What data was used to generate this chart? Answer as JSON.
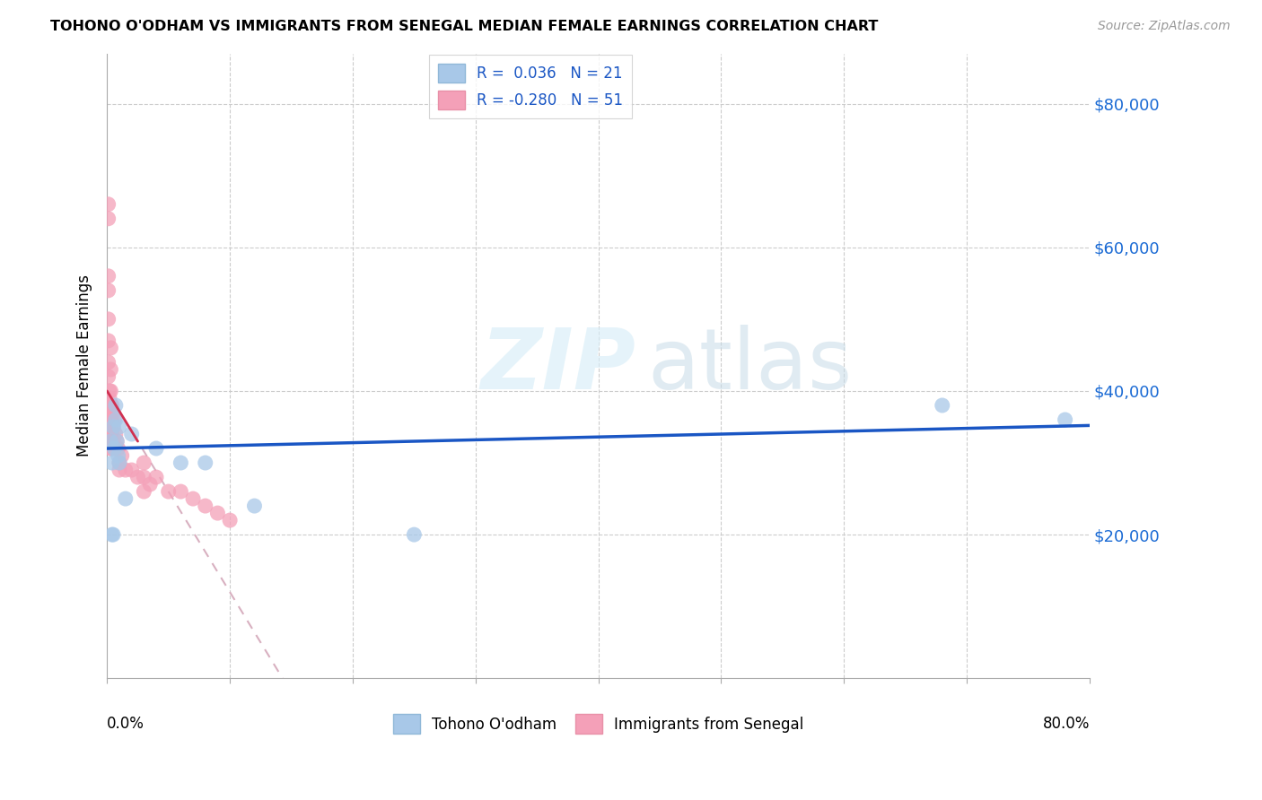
{
  "title": "TOHONO O'ODHAM VS IMMIGRANTS FROM SENEGAL MEDIAN FEMALE EARNINGS CORRELATION CHART",
  "source": "Source: ZipAtlas.com",
  "ylabel": "Median Female Earnings",
  "ytick_labels": [
    "$20,000",
    "$40,000",
    "$60,000",
    "$80,000"
  ],
  "ytick_values": [
    20000,
    40000,
    60000,
    80000
  ],
  "ymin": 0,
  "ymax": 87000,
  "xmin": 0.0,
  "xmax": 0.8,
  "color_blue": "#a8c8e8",
  "color_pink": "#f4a0b8",
  "trendline_blue_color": "#1a56c4",
  "trendline_pink_color": "#d03050",
  "trendline_pink_dash_color": "#d8b0c0",
  "tohono_x": [
    0.003,
    0.004,
    0.004,
    0.005,
    0.005,
    0.006,
    0.007,
    0.007,
    0.008,
    0.009,
    0.01,
    0.01,
    0.015,
    0.02,
    0.04,
    0.06,
    0.08,
    0.12,
    0.25,
    0.68,
    0.78
  ],
  "tohono_y": [
    33000,
    30000,
    20000,
    35000,
    20000,
    32000,
    38000,
    36000,
    33000,
    31000,
    35000,
    30000,
    25000,
    34000,
    32000,
    30000,
    30000,
    24000,
    20000,
    38000,
    36000
  ],
  "senegal_x": [
    0.001,
    0.001,
    0.001,
    0.001,
    0.001,
    0.001,
    0.001,
    0.001,
    0.002,
    0.002,
    0.002,
    0.002,
    0.002,
    0.002,
    0.002,
    0.002,
    0.003,
    0.003,
    0.003,
    0.003,
    0.003,
    0.003,
    0.003,
    0.004,
    0.004,
    0.004,
    0.004,
    0.005,
    0.005,
    0.005,
    0.006,
    0.007,
    0.008,
    0.009,
    0.01,
    0.01,
    0.012,
    0.015,
    0.02,
    0.025,
    0.03,
    0.03,
    0.03,
    0.035,
    0.04,
    0.05,
    0.06,
    0.07,
    0.08,
    0.09,
    0.1
  ],
  "senegal_y": [
    66000,
    64000,
    56000,
    54000,
    50000,
    47000,
    44000,
    42000,
    40000,
    39000,
    38000,
    37000,
    36000,
    35000,
    34000,
    33000,
    46000,
    43000,
    40000,
    38000,
    36000,
    34000,
    32000,
    38000,
    36000,
    34000,
    32000,
    37000,
    35000,
    33000,
    36000,
    34000,
    33000,
    32000,
    30000,
    29000,
    31000,
    29000,
    29000,
    28000,
    30000,
    28000,
    26000,
    27000,
    28000,
    26000,
    26000,
    25000,
    24000,
    23000,
    22000
  ]
}
